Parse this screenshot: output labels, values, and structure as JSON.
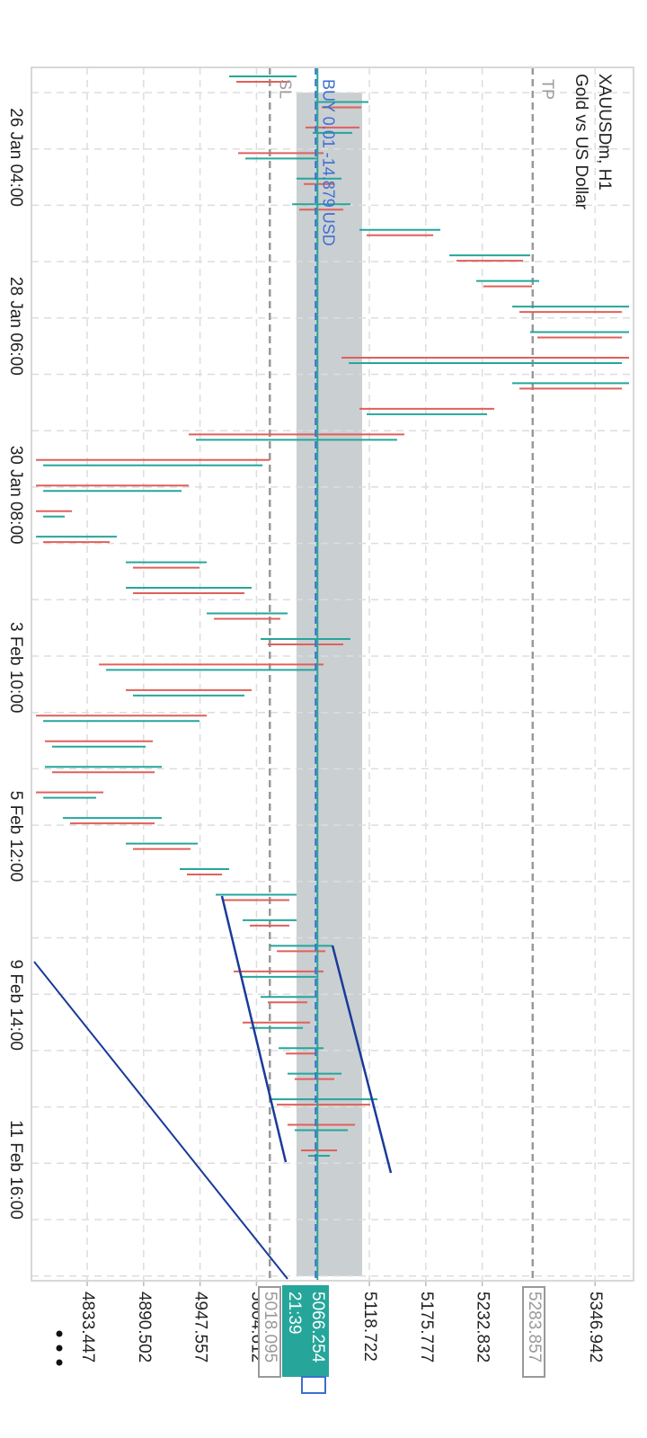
{
  "header": {
    "symbol": "XAUUSDm, H1",
    "description": "Gold vs US Dollar"
  },
  "chart_data": {
    "type": "range",
    "low": [
      4977.0,
      5063.3,
      5054.2,
      4986.1,
      5045.1,
      5040.6,
      5108.7,
      5199.6,
      5226.8,
      5263.2,
      5281.3,
      5090.6,
      5263.2,
      5108.7,
      4936.1,
      4781.7,
      4781.7,
      4781.7,
      4781.7,
      4872.5,
      4872.5,
      4954.3,
      5008.8,
      4845.3,
      4872.5,
      4781.7,
      4790.7,
      4790.7,
      4781.7,
      4808.9,
      4872.5,
      4927.0,
      4963.4,
      4990.6,
      5017.9,
      4981.5,
      5008.8,
      4990.6,
      5027.0,
      5036.0,
      5017.9,
      5036.0,
      5049.7
    ],
    "high": [
      5045.1,
      5117.8,
      5108.7,
      5072.4,
      5090.6,
      5099.6,
      5190.5,
      5281.3,
      5290.4,
      5381.3,
      5381.3,
      5381.3,
      5381.3,
      5245.0,
      5154.1,
      5017.9,
      4936.1,
      4818.0,
      4863.4,
      4954.3,
      4999.7,
      5036.0,
      5099.6,
      5072.4,
      4999.7,
      4954.3,
      4899.8,
      4908.9,
      4849.8,
      4908.9,
      4945.2,
      4977.0,
      5045.1,
      5045.1,
      5081.5,
      5072.4,
      5063.3,
      5058.8,
      5072.4,
      5090.6,
      5126.9,
      5104.2,
      5086.0
    ],
    "up_color": "#26a69a",
    "down_color": "#e0605a",
    "ylim": [
      4777.1,
      5385.8
    ],
    "yticks": [
      4833.447,
      4890.502,
      4947.557,
      5004.612,
      5118.722,
      5175.777,
      5232.832,
      5346.942
    ],
    "time_labels": [
      "26 Jan 04:00",
      "28 Jan 06:00",
      "30 Jan 08:00",
      "3 Feb 10:00",
      "5 Feb 12:00",
      "9 Feb 14:00",
      "11 Feb 16:00"
    ],
    "grid": true,
    "zone": [
      5045.1,
      5111.4
    ],
    "tp": {
      "label": "TP",
      "price": 5283.857
    },
    "sl": {
      "label": "SL",
      "price": 5018.095
    },
    "bid": {
      "price": 5066.254,
      "timer": "21:39"
    },
    "position": {
      "label": "BUY 0.01 -14.879 USD"
    }
  }
}
